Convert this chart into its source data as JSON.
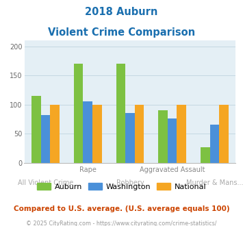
{
  "title_line1": "2018 Auburn",
  "title_line2": "Violent Crime Comparison",
  "categories": [
    "All Violent Crime",
    "Rape",
    "Robbery",
    "Aggravated Assault",
    "Murder & Mans..."
  ],
  "series": {
    "Auburn": [
      115,
      170,
      170,
      90,
      27
    ],
    "Washington": [
      82,
      106,
      86,
      76,
      65
    ],
    "National": [
      100,
      100,
      100,
      100,
      100
    ]
  },
  "colors": {
    "Auburn": "#7dc142",
    "Washington": "#4a90d9",
    "National": "#f5a623"
  },
  "ylim": [
    0,
    210
  ],
  "yticks": [
    0,
    50,
    100,
    150,
    200
  ],
  "plot_bg_color": "#e4eff5",
  "title_color": "#1a6faf",
  "footnote1": "Compared to U.S. average. (U.S. average equals 100)",
  "footnote2": "© 2025 CityRating.com - https://www.cityrating.com/crime-statistics/",
  "footnote1_color": "#cc4400",
  "footnote2_color": "#999999",
  "grid_color": "#c5d8e2",
  "tick_label_fontsize": 7.0,
  "legend_fontsize": 8.0,
  "footnote1_fontsize": 7.5,
  "footnote2_fontsize": 5.8,
  "bar_width": 0.22,
  "cat_top_labels": [
    "",
    "Rape",
    "",
    "Aggravated Assault",
    ""
  ],
  "cat_bot_labels": [
    "All Violent Crime",
    "",
    "Robbery",
    "",
    "Murder & Mans..."
  ],
  "cat_top_color": "#888888",
  "cat_bot_color": "#aaaaaa"
}
